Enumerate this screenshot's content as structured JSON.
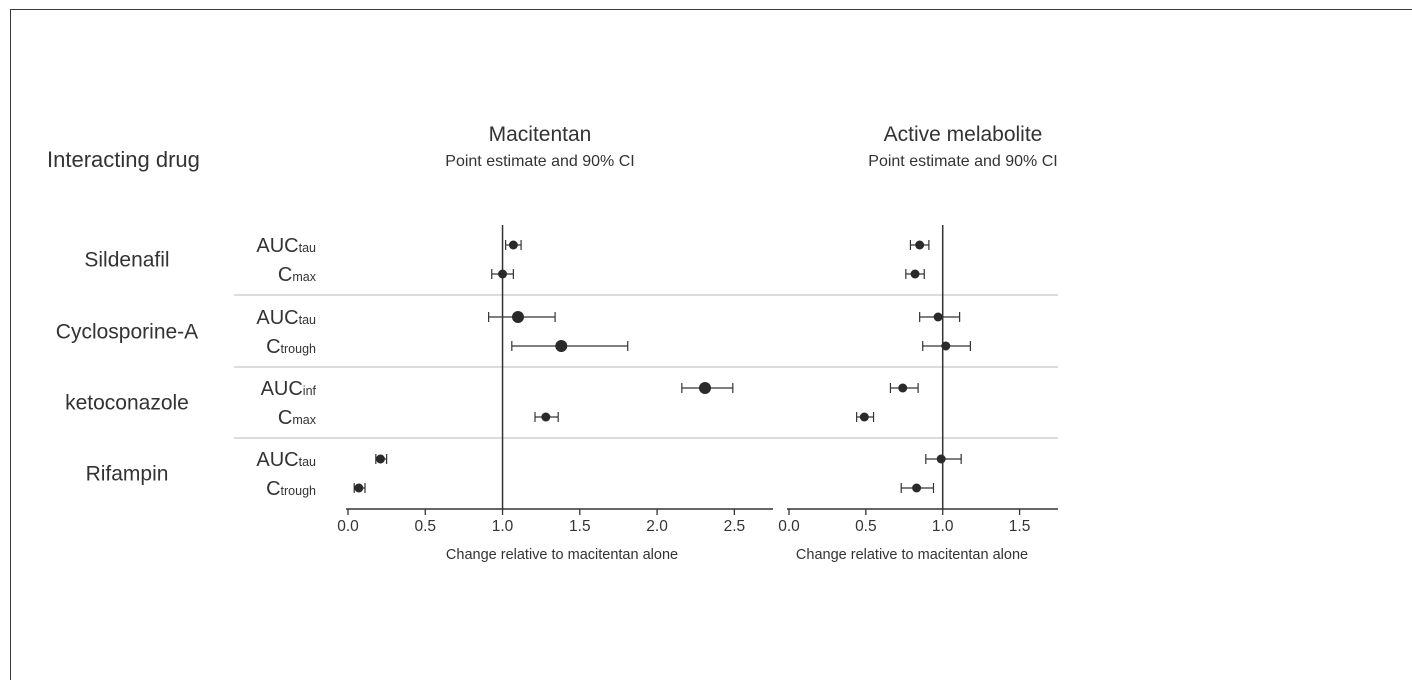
{
  "figure": {
    "header": "Interacting drug",
    "rows": [
      {
        "drug": "Sildenafil",
        "params": [
          {
            "main": "AUC",
            "sub": "tau"
          },
          {
            "main": "C",
            "sub": "max"
          }
        ]
      },
      {
        "drug": "Cyclosporine-A",
        "params": [
          {
            "main": "AUC",
            "sub": "tau"
          },
          {
            "main": "C",
            "sub": "trough"
          }
        ]
      },
      {
        "drug": "ketoconazole",
        "params": [
          {
            "main": "AUC",
            "sub": "inf"
          },
          {
            "main": "C",
            "sub": "max"
          }
        ]
      },
      {
        "drug": "Rifampin",
        "params": [
          {
            "main": "AUC",
            "sub": "tau"
          },
          {
            "main": "C",
            "sub": "trough"
          }
        ]
      }
    ]
  },
  "chart_data": [
    {
      "type": "scatter",
      "title": "Macitentan",
      "subtitle": "Point estimate and 90% CI",
      "xlabel": "Change relative to macitentan alone",
      "xlim": [
        0.0,
        2.75
      ],
      "xticks": [
        "0.0",
        "0.5",
        "1.0",
        "1.5",
        "2.0",
        "2.5"
      ],
      "reference_line": 1.0,
      "points": [
        {
          "drug": "Sildenafil",
          "param": "AUCtau",
          "estimate": 1.07,
          "ci": [
            1.02,
            1.12
          ]
        },
        {
          "drug": "Sildenafil",
          "param": "Cmax",
          "estimate": 1.0,
          "ci": [
            0.93,
            1.07
          ]
        },
        {
          "drug": "Cyclosporine-A",
          "param": "AUCtau",
          "estimate": 1.1,
          "ci": [
            0.91,
            1.34
          ]
        },
        {
          "drug": "Cyclosporine-A",
          "param": "Ctrough",
          "estimate": 1.38,
          "ci": [
            1.06,
            1.81
          ]
        },
        {
          "drug": "ketoconazole",
          "param": "AUCinf",
          "estimate": 2.31,
          "ci": [
            2.16,
            2.49
          ]
        },
        {
          "drug": "ketoconazole",
          "param": "Cmax",
          "estimate": 1.28,
          "ci": [
            1.21,
            1.36
          ]
        },
        {
          "drug": "Rifampin",
          "param": "AUCtau",
          "estimate": 0.21,
          "ci": [
            0.18,
            0.25
          ]
        },
        {
          "drug": "Rifampin",
          "param": "Ctrough",
          "estimate": 0.07,
          "ci": [
            0.04,
            0.11
          ]
        }
      ]
    },
    {
      "type": "scatter",
      "title": "Active melabolite",
      "subtitle": "Point estimate and 90% CI",
      "xlabel": "Change relative to macitentan alone",
      "xlim": [
        0.0,
        1.75
      ],
      "xticks": [
        "0.0",
        "0.5",
        "1.0",
        "1.5"
      ],
      "reference_line": 1.0,
      "points": [
        {
          "drug": "Sildenafil",
          "param": "AUCtau",
          "estimate": 0.85,
          "ci": [
            0.79,
            0.91
          ]
        },
        {
          "drug": "Sildenafil",
          "param": "Cmax",
          "estimate": 0.82,
          "ci": [
            0.76,
            0.88
          ]
        },
        {
          "drug": "Cyclosporine-A",
          "param": "AUCtau",
          "estimate": 0.97,
          "ci": [
            0.85,
            1.11
          ]
        },
        {
          "drug": "Cyclosporine-A",
          "param": "Ctrough",
          "estimate": 1.02,
          "ci": [
            0.87,
            1.18
          ]
        },
        {
          "drug": "ketoconazole",
          "param": "AUCinf",
          "estimate": 0.74,
          "ci": [
            0.66,
            0.84
          ]
        },
        {
          "drug": "ketoconazole",
          "param": "Cmax",
          "estimate": 0.49,
          "ci": [
            0.44,
            0.55
          ]
        },
        {
          "drug": "Rifampin",
          "param": "AUCtau",
          "estimate": 0.99,
          "ci": [
            0.89,
            1.12
          ]
        },
        {
          "drug": "Rifampin",
          "param": "Ctrough",
          "estimate": 0.83,
          "ci": [
            0.73,
            0.94
          ]
        }
      ]
    }
  ]
}
